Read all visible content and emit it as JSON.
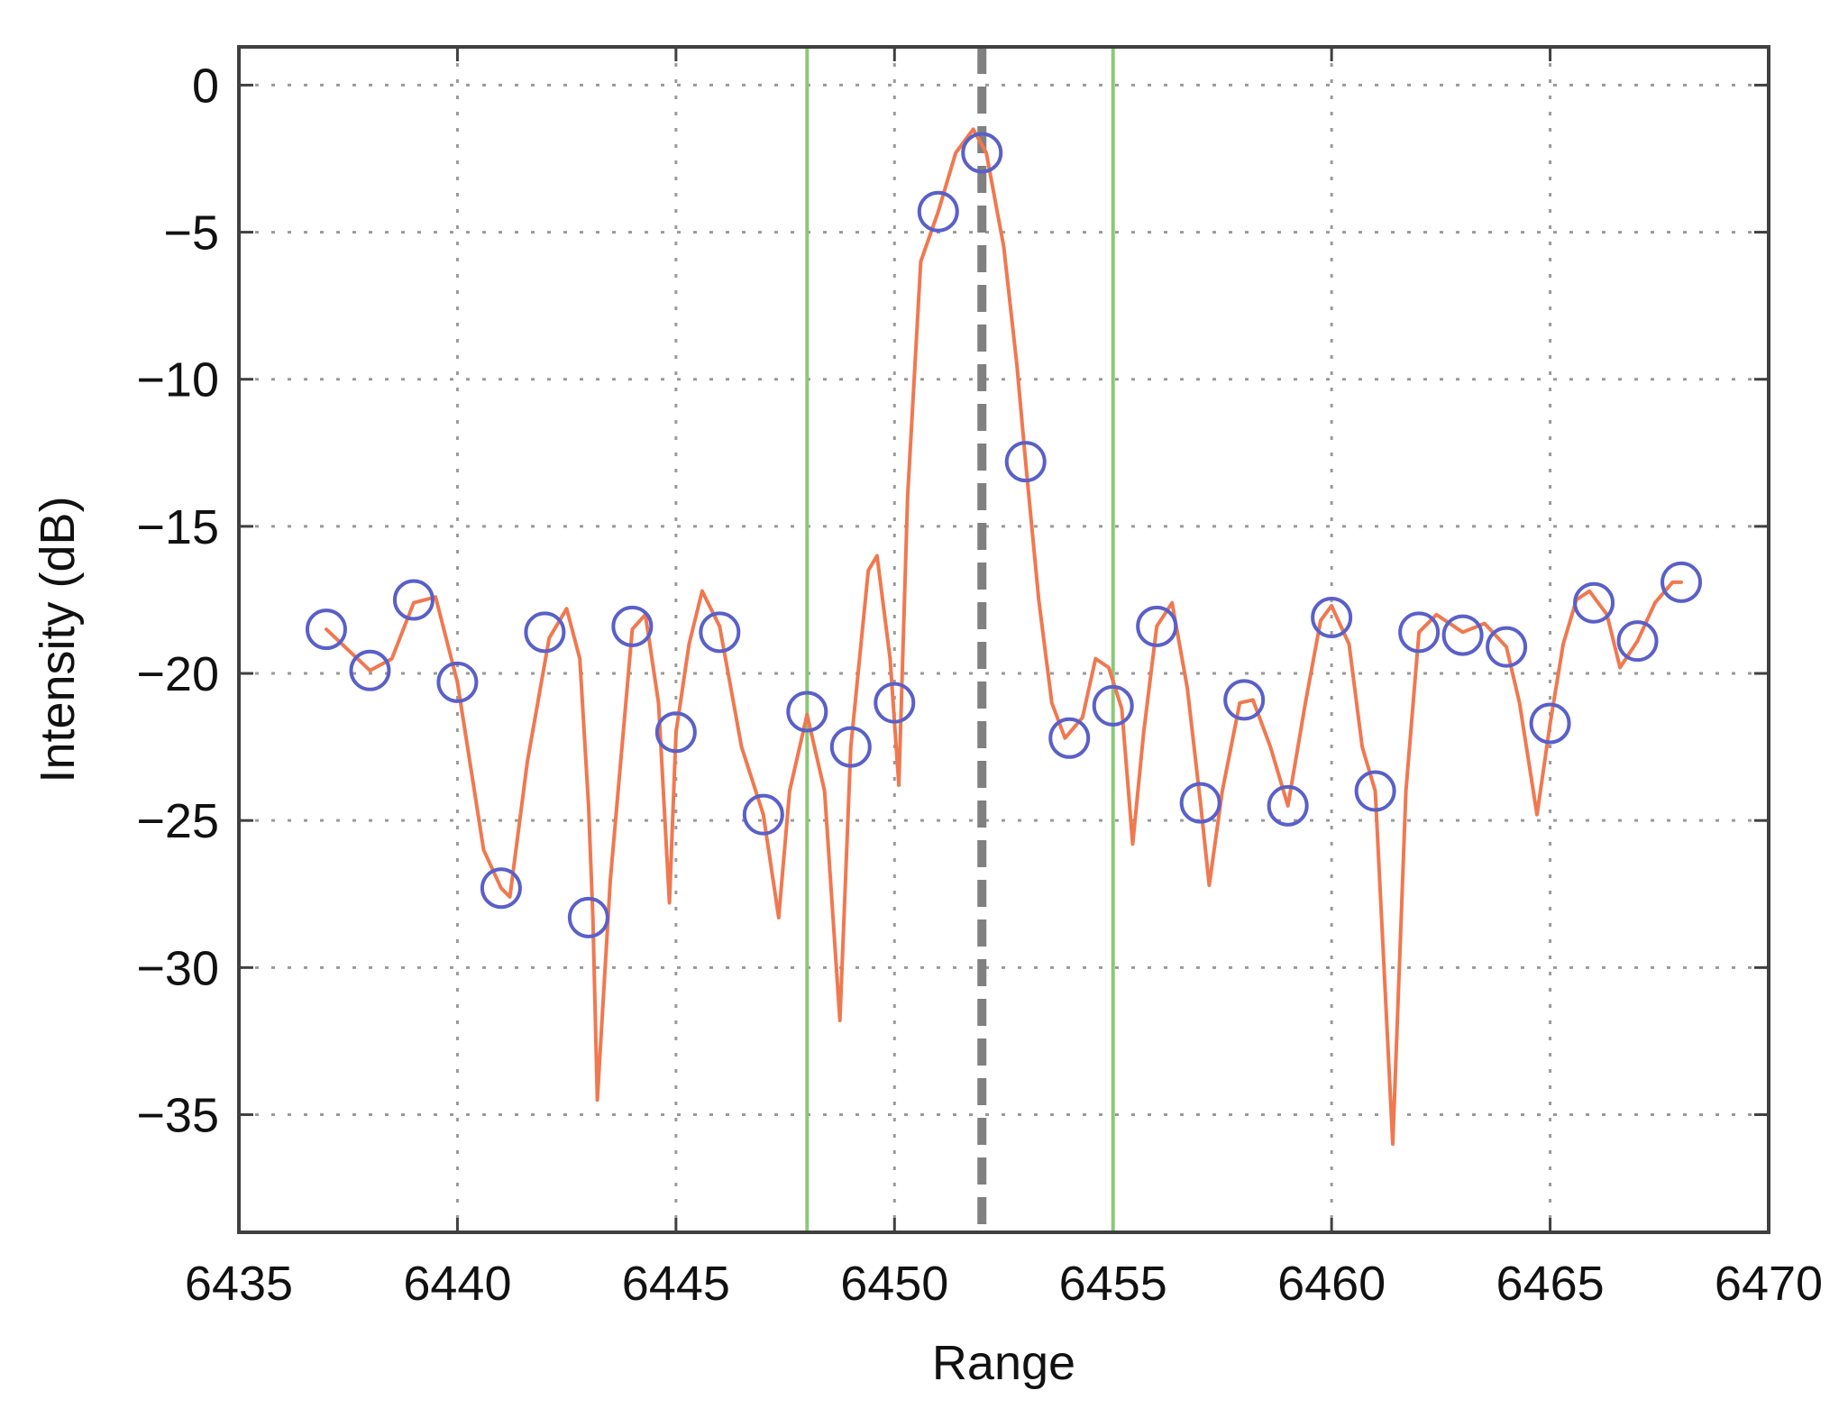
{
  "chart_data": {
    "type": "line",
    "title": "",
    "xlabel": "Range",
    "ylabel": "Intensity (dB)",
    "xlim": [
      6435,
      6470
    ],
    "ylim": [
      -39,
      1.3
    ],
    "xticks": [
      6435,
      6440,
      6445,
      6450,
      6455,
      6460,
      6465,
      6470
    ],
    "yticks": [
      0,
      -5,
      -10,
      -15,
      -20,
      -25,
      -30,
      -35
    ],
    "xtick_labels": [
      "6435",
      "6440",
      "6445",
      "6450",
      "6455",
      "6460",
      "6465",
      "6470"
    ],
    "ytick_labels": [
      "0",
      "−5",
      "−10",
      "−15",
      "−20",
      "−25",
      "−30",
      "−35"
    ],
    "grid": true,
    "legend": "none",
    "colors": {
      "curve": "#f07850",
      "samples": "#5a60c8",
      "window": "#8cc878",
      "peak": "#808080",
      "grid": "#9a9a9a",
      "axes": "#404040"
    },
    "series": [
      {
        "kind": "curve",
        "x": [
          6437.0,
          6437.5,
          6438.0,
          6438.5,
          6439.0,
          6439.5,
          6440.0,
          6440.6,
          6441.0,
          6441.2,
          6441.6,
          6442.1,
          6442.5,
          6442.8,
          6443.0,
          6443.1,
          6443.2,
          6443.5,
          6444.0,
          6444.3,
          6444.6,
          6444.85,
          6445.0,
          6445.3,
          6445.6,
          6446.0,
          6446.5,
          6447.0,
          6447.35,
          6447.6,
          6448.0,
          6448.4,
          6448.75,
          6449.0,
          6449.4,
          6449.6,
          6449.9,
          6450.1,
          6450.3,
          6450.6,
          6451.0,
          6451.4,
          6451.8,
          6452.1,
          6452.5,
          6452.8,
          6453.0,
          6453.3,
          6453.6,
          6453.9,
          6454.3,
          6454.6,
          6454.9,
          6455.2,
          6455.45,
          6455.7,
          6456.0,
          6456.35,
          6456.7,
          6457.0,
          6457.2,
          6457.5,
          6457.9,
          6458.2,
          6458.6,
          6459.0,
          6459.4,
          6459.75,
          6460.0,
          6460.4,
          6460.7,
          6461.0,
          6461.2,
          6461.4,
          6461.7,
          6462.0,
          6462.4,
          6462.8,
          6463.0,
          6463.5,
          6464.0,
          6464.3,
          6464.7,
          6465.0,
          6465.3,
          6465.6,
          6465.9,
          6466.3,
          6466.6,
          6467.0,
          6467.4,
          6467.8,
          6468.0
        ],
        "y": [
          -18.5,
          -19.2,
          -19.9,
          -19.5,
          -17.6,
          -17.4,
          -20.3,
          -26.0,
          -27.3,
          -27.6,
          -23.0,
          -18.8,
          -17.8,
          -19.5,
          -24.5,
          -28.3,
          -34.5,
          -27.0,
          -18.5,
          -18.0,
          -21.0,
          -27.8,
          -22.0,
          -19.0,
          -17.2,
          -18.4,
          -22.5,
          -24.8,
          -28.3,
          -24.0,
          -21.4,
          -24.0,
          -31.8,
          -22.5,
          -16.5,
          -16.0,
          -19.5,
          -23.8,
          -14.0,
          -6.0,
          -4.3,
          -2.3,
          -1.5,
          -2.3,
          -5.5,
          -9.5,
          -12.8,
          -17.5,
          -21.0,
          -22.2,
          -21.5,
          -19.5,
          -19.8,
          -21.2,
          -25.8,
          -22.0,
          -18.4,
          -17.6,
          -20.5,
          -24.4,
          -27.2,
          -24.0,
          -21.0,
          -20.9,
          -22.5,
          -24.5,
          -21.0,
          -18.2,
          -17.7,
          -19.0,
          -22.5,
          -24.0,
          -30.0,
          -36.0,
          -24.0,
          -18.6,
          -18.0,
          -18.4,
          -18.6,
          -18.3,
          -19.1,
          -21.0,
          -24.8,
          -21.7,
          -19.0,
          -17.5,
          -17.2,
          -18.0,
          -19.8,
          -18.9,
          -17.6,
          -16.9,
          -16.9
        ]
      },
      {
        "kind": "samples",
        "x": [
          6437,
          6438,
          6439,
          6440,
          6441,
          6442,
          6443,
          6444,
          6445,
          6446,
          6447,
          6448,
          6449,
          6450,
          6451,
          6452,
          6453,
          6454,
          6455,
          6456,
          6457,
          6458,
          6459,
          6460,
          6461,
          6462,
          6463,
          6464,
          6465,
          6466,
          6467,
          6468
        ],
        "y": [
          -18.5,
          -19.9,
          -17.5,
          -20.3,
          -27.3,
          -18.6,
          -28.3,
          -18.4,
          -22.0,
          -18.6,
          -24.8,
          -21.3,
          -22.5,
          -21.0,
          -4.3,
          -2.3,
          -12.8,
          -22.2,
          -21.1,
          -18.4,
          -24.4,
          -20.9,
          -24.5,
          -18.1,
          -24.0,
          -18.6,
          -18.7,
          -19.1,
          -21.7,
          -17.6,
          -18.9,
          -16.9
        ]
      }
    ],
    "vertical_lines": [
      {
        "x": 6448,
        "style": "solid",
        "role": "window"
      },
      {
        "x": 6452,
        "style": "dashed",
        "role": "peak"
      },
      {
        "x": 6455,
        "style": "solid",
        "role": "window"
      }
    ]
  }
}
